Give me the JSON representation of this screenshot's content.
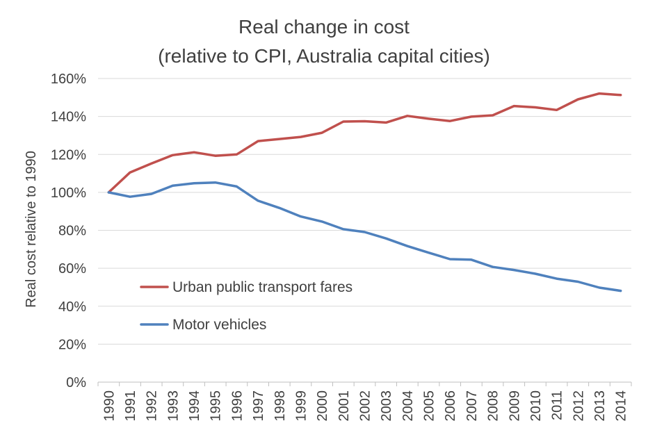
{
  "chart_data": {
    "type": "line",
    "title": [
      "Real change in cost",
      "(relative to CPI, Australia capital cities)"
    ],
    "ylabel": "Real cost relative to 1990",
    "xlabel": "",
    "ylim": [
      0,
      160
    ],
    "yticks": [
      0,
      20,
      40,
      60,
      80,
      100,
      120,
      140,
      160
    ],
    "ytick_labels": [
      "0%",
      "20%",
      "40%",
      "60%",
      "80%",
      "100%",
      "120%",
      "140%",
      "160%"
    ],
    "grid": true,
    "legend_position": "left-middle",
    "categories": [
      "1990",
      "1991",
      "1992",
      "1993",
      "1994",
      "1995",
      "1996",
      "1997",
      "1998",
      "1999",
      "2000",
      "2001",
      "2002",
      "2003",
      "2004",
      "2005",
      "2006",
      "2007",
      "2008",
      "2009",
      "2010",
      "2011",
      "2012",
      "2013",
      "2014"
    ],
    "series": [
      {
        "name": "Urban public transport fares",
        "color": "#c0504d",
        "values": [
          100,
          110.5,
          115.2,
          119.6,
          121.1,
          119.3,
          120.0,
          127.0,
          128.1,
          129.2,
          131.4,
          137.3,
          137.5,
          136.8,
          140.3,
          138.8,
          137.6,
          139.9,
          140.6,
          145.5,
          144.8,
          143.4,
          149.0,
          152.1,
          151.3
        ]
      },
      {
        "name": "Motor vehicles",
        "color": "#4f81bd",
        "values": [
          100,
          97.7,
          99.2,
          103.5,
          104.8,
          105.2,
          103.1,
          95.6,
          91.8,
          87.3,
          84.6,
          80.6,
          79.1,
          75.7,
          71.7,
          68.2,
          64.8,
          64.5,
          60.7,
          59.1,
          57.1,
          54.5,
          52.9,
          49.8,
          48.1
        ]
      }
    ]
  }
}
